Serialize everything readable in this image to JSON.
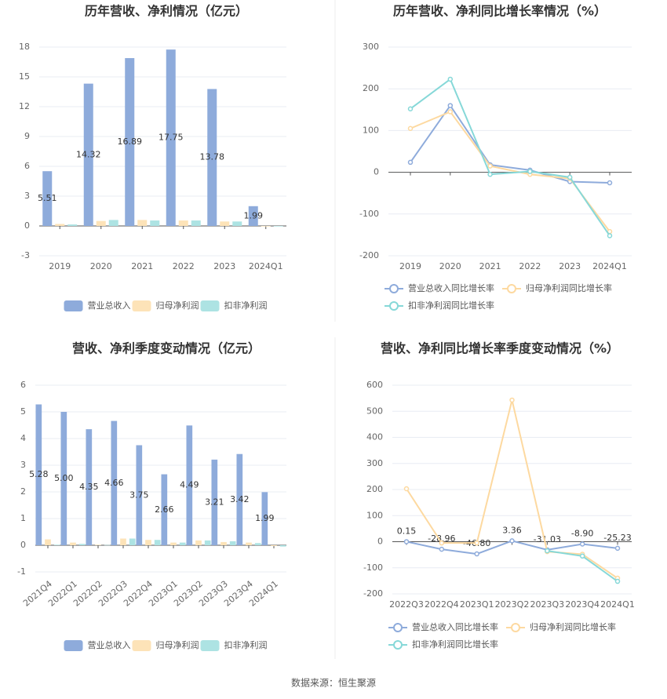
{
  "chart_data": [
    {
      "type": "bar",
      "title": "历年营收、净利情况（亿元）",
      "categories": [
        "2019",
        "2020",
        "2021",
        "2022",
        "2023",
        "2024Q1"
      ],
      "series": [
        {
          "name": "营业总收入",
          "color": "#8eabdb",
          "values": [
            5.51,
            14.32,
            16.89,
            17.75,
            13.78,
            1.99
          ],
          "value_labels": [
            "5.51",
            "14.32",
            "16.89",
            "17.75",
            "13.78",
            "1.99"
          ]
        },
        {
          "name": "归母净利润",
          "color": "#fde3b8",
          "values": [
            0.2,
            0.5,
            0.6,
            0.55,
            0.45,
            -0.05
          ]
        },
        {
          "name": "扣非净利润",
          "color": "#ade3e3",
          "values": [
            0.15,
            0.6,
            0.55,
            0.55,
            0.45,
            -0.05
          ]
        }
      ],
      "ylim": [
        -3,
        18
      ],
      "yticks": [
        -3,
        0,
        3,
        6,
        9,
        12,
        15,
        18
      ],
      "grid": true,
      "legend": "bottom"
    },
    {
      "type": "line",
      "title": "历年营收、净利同比增长率情况（%）",
      "categories": [
        "2019",
        "2020",
        "2021",
        "2022",
        "2023",
        "2024Q1"
      ],
      "series": [
        {
          "name": "营业总收入同比增长率",
          "color": "#8eabdb",
          "values": [
            23.82,
            159.79,
            17.89,
            5.14,
            -22.37,
            -25.23
          ]
        },
        {
          "name": "归母净利润同比增长率",
          "color": "#fdd9a0",
          "values": [
            105,
            145,
            15,
            -5,
            -15,
            -142
          ]
        },
        {
          "name": "扣非净利润同比增长率",
          "color": "#86d8d8",
          "values": [
            152,
            223,
            -5,
            2,
            -12,
            -152
          ]
        }
      ],
      "ylim": [
        -200,
        300
      ],
      "yticks": [
        -200,
        -100,
        0,
        100,
        200,
        300
      ],
      "grid": true,
      "legend": "bottom"
    },
    {
      "type": "bar",
      "title": "营收、净利季度变动情况（亿元）",
      "categories": [
        "2021Q4",
        "2022Q1",
        "2022Q2",
        "2022Q3",
        "2022Q4",
        "2023Q1",
        "2023Q2",
        "2023Q3",
        "2023Q4",
        "2024Q1"
      ],
      "series": [
        {
          "name": "营业总收入",
          "color": "#8eabdb",
          "values": [
            5.28,
            5.0,
            4.35,
            4.66,
            3.75,
            2.66,
            4.49,
            3.21,
            3.42,
            1.99
          ],
          "value_labels": [
            "5.28",
            "5.00",
            "4.35",
            "4.66",
            "3.75",
            "2.66",
            "4.49",
            "3.21",
            "3.42",
            "1.99"
          ]
        },
        {
          "name": "归母净利润",
          "color": "#fde3b8",
          "values": [
            0.22,
            0.1,
            0.02,
            0.25,
            0.2,
            0.1,
            0.18,
            0.12,
            0.1,
            -0.03
          ]
        },
        {
          "name": "扣非净利润",
          "color": "#ade3e3",
          "values": [
            0.02,
            0.05,
            0.01,
            0.25,
            0.2,
            0.1,
            0.18,
            0.15,
            0.08,
            -0.05
          ]
        }
      ],
      "ylim": [
        -1,
        6
      ],
      "yticks": [
        -1,
        0,
        1,
        2,
        3,
        4,
        5,
        6
      ],
      "grid": true,
      "legend": "bottom"
    },
    {
      "type": "line",
      "title": "营收、净利同比增长率季度变动情况（%）",
      "categories": [
        "2022Q3",
        "2022Q4",
        "2023Q1",
        "2023Q2",
        "2023Q3",
        "2023Q4",
        "2024Q1"
      ],
      "series": [
        {
          "name": "营业总收入同比增长率",
          "color": "#8eabdb",
          "values": [
            0.15,
            -28.96,
            -46.8,
            3.36,
            -31.03,
            -8.9,
            -25.23
          ],
          "value_labels": [
            "0.15",
            "-28.96",
            "-46.80",
            "3.36",
            "-31.03",
            "-8.90",
            "-25.23"
          ]
        },
        {
          "name": "归母净利润同比增长率",
          "color": "#fdd9a0",
          "values": [
            203,
            -5,
            -5,
            543,
            -38,
            -48,
            -140
          ]
        },
        {
          "name": "扣非净利润同比增长率",
          "color": "#86d8d8",
          "values": [
            null,
            null,
            null,
            null,
            -35,
            -55,
            -152
          ]
        }
      ],
      "ylim": [
        -200,
        600
      ],
      "yticks": [
        -200,
        -100,
        0,
        100,
        200,
        300,
        400,
        500,
        600
      ],
      "grid": true,
      "legend": "bottom"
    }
  ],
  "source": "数据来源：恒生聚源"
}
